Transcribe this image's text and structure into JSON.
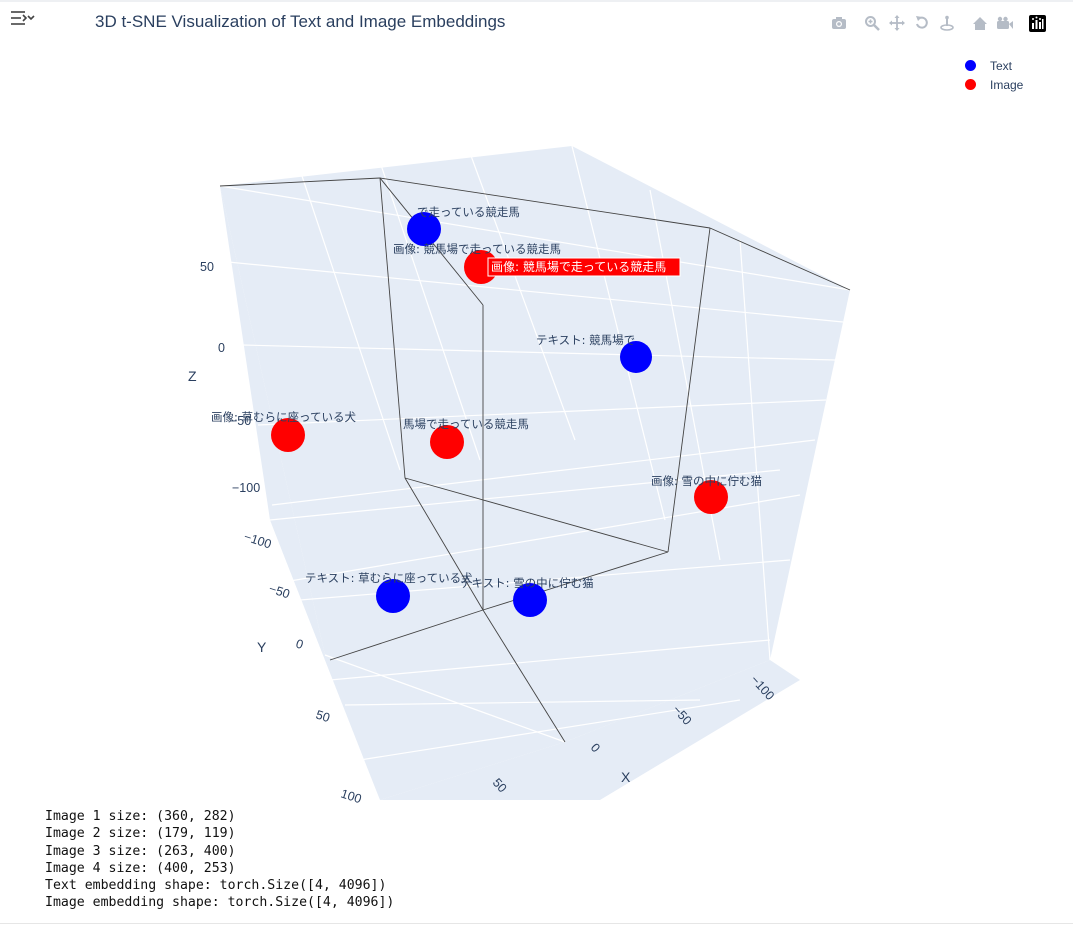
{
  "title": "3D t-SNE Visualization of Text and Image Embeddings",
  "modebar": [
    "camera-icon",
    "zoom-icon",
    "pan-icon",
    "orbit-icon",
    "turntable-icon",
    "home-icon",
    "reset-camera-icon",
    "plotly-logo-icon"
  ],
  "legend": [
    {
      "name": "Text",
      "color": "#0000ff"
    },
    {
      "name": "Image",
      "color": "#ff0000"
    }
  ],
  "chart_data": {
    "type": "scatter3d",
    "title": "3D t-SNE Visualization of Text and Image Embeddings",
    "axes": {
      "x": {
        "label": "X",
        "ticks": [
          "−100",
          "−50",
          "0",
          "50"
        ]
      },
      "y": {
        "label": "Y",
        "ticks": [
          "−100",
          "−50",
          "0",
          "50",
          "100"
        ]
      },
      "z": {
        "label": "Z",
        "ticks": [
          "−100",
          "−50",
          "0",
          "50"
        ]
      }
    },
    "legend_position": "top-right",
    "series": [
      {
        "name": "Text",
        "color": "#0000ff",
        "points": [
          {
            "label": "テキスト: 競馬場で走っている競走馬",
            "shown_label": "で走っている競走馬"
          },
          {
            "label": "テキスト: 競馬場で",
            "shown_label": "テキスト: 競馬場で"
          },
          {
            "label": "テキスト: 草むらに座っている犬",
            "shown_label": "テキスト: 草むらに座っている犬"
          },
          {
            "label": "テキスト: 雪の中に佇む猫",
            "shown_label": "テキスト: 雪の中に佇む猫"
          }
        ]
      },
      {
        "name": "Image",
        "color": "#ff0000",
        "points": [
          {
            "label": "画像: 競馬場で走っている競走馬",
            "shown_label": "画像: 競馬場で走っている競走馬"
          },
          {
            "label": "画像: 草むらに座っている犬",
            "shown_label": "画像: 草むらに座っている犬"
          },
          {
            "label": "画像: 競馬場で走っている競走馬",
            "shown_label": "馬場で走っている競走馬"
          },
          {
            "label": "画像: 雪の中に佇む猫",
            "shown_label": "画像: 雪の中に佇む猫"
          }
        ]
      }
    ],
    "hover": {
      "text": "画像: 競馬場で走っている競走馬",
      "color": "#ff0000"
    }
  },
  "console": [
    "Image 1 size: (360, 282)",
    "Image 2 size: (179, 119)",
    "Image 3 size: (263, 400)",
    "Image 4 size: (400, 253)",
    "Text embedding shape: torch.Size([4, 4096])",
    "Image embedding shape: torch.Size([4, 4096])"
  ]
}
